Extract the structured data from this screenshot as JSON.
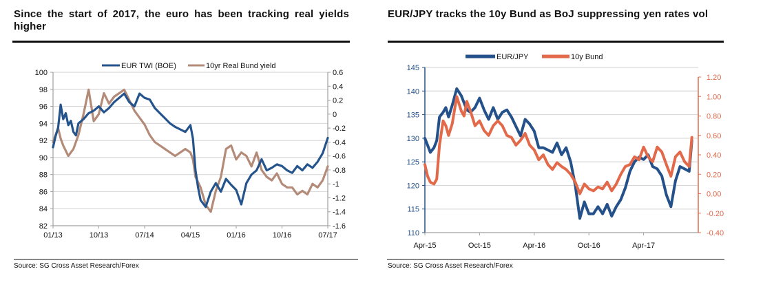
{
  "charts": [
    {
      "title": "Since the start of 2017, the euro has been tracking real yields higher",
      "source": "Source: SG Cross Asset Research/Forex",
      "legend": [
        "EUR TWI (BOE)",
        "10yr Real Bund yield"
      ],
      "colors": {
        "primary": "#25548c",
        "secondary": "#b38b78",
        "grid": "#d9d9d9",
        "axis_text": "#111111"
      }
    },
    {
      "title": "EUR/JPY tracks the 10y Bund as BoJ suppressing yen rates vol",
      "source": "Source: SG Cross Asset Research/Forex",
      "legend": [
        "EUR/JPY",
        "10y Bund"
      ],
      "colors": {
        "primary": "#24518a",
        "secondary": "#e2694a",
        "grid": "#d9d9d9",
        "left_axis_text": "#24518a",
        "right_axis_text": "#e2694a"
      }
    }
  ],
  "chart_data": [
    {
      "type": "line",
      "title": "Since the start of 2017, the euro has been tracking real yields higher",
      "xlabel": "",
      "ylabel": "",
      "x_ticks": [
        "01/13",
        "10/13",
        "07/14",
        "04/15",
        "01/16",
        "10/16",
        "07/17"
      ],
      "x_range": [
        0,
        54
      ],
      "x_unit": "months since 01/13",
      "y_left": {
        "ticks": [
          100,
          98,
          96,
          94,
          92,
          90,
          88,
          86,
          84,
          82
        ],
        "range": [
          82,
          100
        ]
      },
      "y_right": {
        "ticks": [
          0.6,
          0.4,
          0.2,
          0,
          -0.2,
          -0.4,
          -0.6,
          -0.8,
          -1,
          -1.2,
          -1.4,
          -1.6
        ],
        "range": [
          -1.6,
          0.6
        ]
      },
      "grid": true,
      "legend_position": "top-center",
      "series": [
        {
          "name": "EUR TWI (BOE)",
          "axis": "left",
          "x": [
            0,
            0.5,
            1,
            1.5,
            2,
            2.5,
            3,
            3.5,
            4,
            4.5,
            5,
            6,
            7,
            8,
            9,
            10,
            11,
            12,
            13,
            14,
            15,
            16,
            17,
            18,
            19,
            20,
            21,
            22,
            23,
            24,
            25,
            26,
            27,
            27.5,
            28,
            28.5,
            29,
            30,
            31,
            32,
            33,
            34,
            35,
            36,
            37,
            38,
            39,
            40,
            41,
            42,
            43,
            44,
            45,
            46,
            47,
            48,
            49,
            50,
            51,
            52,
            53,
            54
          ],
          "values": [
            91.2,
            92.5,
            93.5,
            96.2,
            94.5,
            95.2,
            93.8,
            94.3,
            93.0,
            92.6,
            94.0,
            94.5,
            95.2,
            95.5,
            96.0,
            95.3,
            95.8,
            96.5,
            97.0,
            97.5,
            96.5,
            96.0,
            97.5,
            97.0,
            96.8,
            95.8,
            95.2,
            94.6,
            94.0,
            93.6,
            93.3,
            93.0,
            93.8,
            92.2,
            88.5,
            86.5,
            85.0,
            84.2,
            86.0,
            87.0,
            86.0,
            87.5,
            86.8,
            86.2,
            84.5,
            87.0,
            88.0,
            88.5,
            89.8,
            88.5,
            88.8,
            89.2,
            89.0,
            88.5,
            88.2,
            89.0,
            88.5,
            89.2,
            88.8,
            89.5,
            90.5,
            92.3
          ]
        },
        {
          "name": "10yr Real Bund yield",
          "axis": "right",
          "x": [
            0,
            0.5,
            1,
            1.5,
            2,
            3,
            4,
            5,
            6,
            7,
            8,
            9,
            10,
            11,
            12,
            13,
            14,
            15,
            16,
            17,
            18,
            19,
            20,
            21,
            22,
            23,
            24,
            25,
            26,
            27,
            27.5,
            28,
            29,
            30,
            31,
            32,
            33,
            34,
            35,
            36,
            37,
            38,
            39,
            40,
            41,
            42,
            43,
            44,
            45,
            46,
            47,
            48,
            49,
            50,
            51,
            52,
            53,
            54
          ],
          "values": [
            -0.4,
            -0.3,
            -0.2,
            -0.35,
            -0.45,
            -0.6,
            -0.5,
            -0.3,
            0.0,
            0.35,
            -0.1,
            0.0,
            0.3,
            0.15,
            0.25,
            0.3,
            0.35,
            0.2,
            0.05,
            -0.05,
            -0.15,
            -0.3,
            -0.4,
            -0.45,
            -0.5,
            -0.55,
            -0.6,
            -0.55,
            -0.5,
            -0.55,
            -0.65,
            -0.9,
            -1.05,
            -1.3,
            -1.4,
            -1.1,
            -0.9,
            -0.5,
            -0.45,
            -0.65,
            -0.55,
            -0.6,
            -0.75,
            -0.55,
            -0.8,
            -0.9,
            -0.95,
            -0.85,
            -1.0,
            -1.05,
            -1.05,
            -1.15,
            -1.1,
            -1.15,
            -1.0,
            -1.05,
            -0.95,
            -0.75
          ]
        }
      ]
    },
    {
      "type": "line",
      "title": "EUR/JPY tracks the 10y Bund as BoJ suppressing yen rates vol",
      "xlabel": "",
      "ylabel": "",
      "x_ticks": [
        "Apr-15",
        "Oct-15",
        "Apr-16",
        "Oct-16",
        "Apr-17"
      ],
      "x_range": [
        0,
        30
      ],
      "x_unit": "months since Apr-15",
      "y_left": {
        "ticks": [
          145,
          140,
          135,
          130,
          125,
          120,
          115,
          110
        ],
        "range": [
          110,
          145
        ]
      },
      "y_right": {
        "ticks": [
          1.2,
          1.0,
          0.8,
          0.6,
          0.4,
          0.2,
          0.0,
          -0.2,
          -0.4
        ],
        "range": [
          -0.4,
          1.2
        ]
      },
      "grid": true,
      "legend_position": "top-center",
      "series": [
        {
          "name": "EUR/JPY",
          "axis": "left",
          "x": [
            0,
            0.3,
            0.6,
            1,
            1.3,
            1.6,
            2,
            2.3,
            2.6,
            3,
            3.5,
            4,
            4.3,
            4.6,
            5,
            5.5,
            6,
            6.5,
            7,
            7.5,
            8,
            8.5,
            9,
            9.5,
            10,
            10.5,
            11,
            11.5,
            12,
            12.5,
            13,
            13.5,
            14,
            14.5,
            15,
            15.5,
            16,
            16.5,
            17,
            17.5,
            18,
            18.5,
            19,
            19.5,
            20,
            20.5,
            21,
            21.5,
            22,
            22.5,
            23,
            23.5,
            24,
            24.5,
            25,
            25.5,
            26,
            26.5,
            27,
            27.5,
            28,
            28.5,
            29,
            29.3
          ],
          "values": [
            130,
            128.5,
            127,
            128,
            129.5,
            134.5,
            135.5,
            136.5,
            134.5,
            137,
            140.5,
            139,
            137.5,
            136,
            135.5,
            136.5,
            138.5,
            136,
            134,
            136.5,
            134,
            135.5,
            136,
            134.5,
            132.5,
            130.5,
            134,
            133,
            131.5,
            128,
            128,
            127.5,
            127,
            129,
            126.5,
            128,
            125,
            120,
            113,
            116.5,
            114,
            114,
            115.5,
            114,
            116,
            113.5,
            115.5,
            117,
            119.5,
            123,
            125,
            126,
            125.5,
            126.5,
            124,
            123.5,
            122,
            118,
            115.5,
            121,
            124,
            123.5,
            123,
            129.5
          ]
        },
        {
          "name": "10y Bund",
          "axis": "right",
          "x": [
            0,
            0.3,
            0.6,
            1,
            1.3,
            1.6,
            2,
            2.3,
            2.6,
            3,
            3.5,
            4,
            4.3,
            4.6,
            5,
            5.5,
            6,
            6.5,
            7,
            7.5,
            8,
            8.5,
            9,
            9.5,
            10,
            10.5,
            11,
            11.5,
            12,
            12.5,
            13,
            13.5,
            14,
            14.5,
            15,
            15.5,
            16,
            16.5,
            17,
            17.5,
            18,
            18.5,
            19,
            19.5,
            20,
            20.5,
            21,
            21.5,
            22,
            22.5,
            23,
            23.5,
            24,
            24.5,
            25,
            25.5,
            26,
            26.5,
            27,
            27.5,
            28,
            28.5,
            29,
            29.3
          ],
          "values": [
            0.3,
            0.18,
            0.12,
            0.1,
            0.15,
            0.5,
            0.75,
            0.7,
            0.6,
            0.72,
            1.0,
            0.85,
            0.8,
            0.95,
            0.85,
            0.7,
            0.75,
            0.65,
            0.6,
            0.7,
            0.75,
            0.7,
            0.6,
            0.58,
            0.5,
            0.55,
            0.62,
            0.5,
            0.45,
            0.35,
            0.4,
            0.3,
            0.25,
            0.32,
            0.28,
            0.25,
            0.2,
            0.12,
            0.0,
            0.1,
            0.05,
            0.03,
            0.07,
            0.05,
            0.12,
            0.03,
            0.1,
            0.2,
            0.28,
            0.3,
            0.38,
            0.35,
            0.48,
            0.38,
            0.33,
            0.48,
            0.43,
            0.3,
            0.18,
            0.38,
            0.43,
            0.33,
            0.28,
            0.58
          ]
        }
      ]
    }
  ]
}
